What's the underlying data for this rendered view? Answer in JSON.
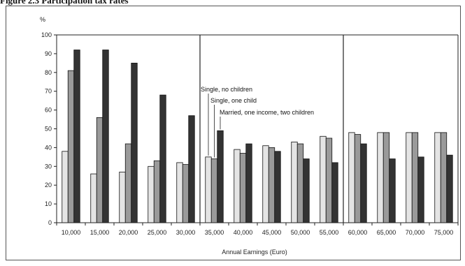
{
  "page": {
    "heading": "Figure 2.3 Participation tax rates"
  },
  "chart_data": {
    "type": "bar",
    "title": "",
    "ylabel": "%",
    "xlabel": "Annual Earnings (Euro)",
    "ylim": [
      0,
      100
    ],
    "yticks": [
      0,
      10,
      20,
      30,
      40,
      50,
      60,
      70,
      80,
      90,
      100
    ],
    "grid": false,
    "categories": [
      "10,000",
      "15,000",
      "20,000",
      "25,000",
      "30,000",
      "35,000",
      "40,000",
      "45,000",
      "50,000",
      "55,000",
      "60,000",
      "65,000",
      "70,000",
      "75,000"
    ],
    "group_dividers_after": [
      "30,000",
      "55,000"
    ],
    "series": [
      {
        "name": "Single, no children",
        "color": "#e4e4e4",
        "values": [
          38,
          26,
          27,
          30,
          32,
          35,
          39,
          41,
          43,
          46,
          48,
          48,
          48,
          48
        ]
      },
      {
        "name": "Single, one child",
        "color": "#9a9a9a",
        "values": [
          81,
          56,
          42,
          33,
          31,
          34,
          37,
          40,
          42,
          45,
          47,
          48,
          48,
          48
        ]
      },
      {
        "name": "Married, one income, two children",
        "color": "#333333",
        "values": [
          92,
          92,
          85,
          68,
          57,
          49,
          42,
          38,
          34,
          32,
          42,
          34,
          35,
          36
        ]
      }
    ],
    "annotation_category": "35,000"
  }
}
